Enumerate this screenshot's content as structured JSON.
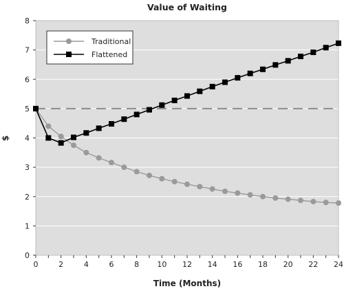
{
  "chart_data": {
    "type": "line",
    "title": "Value of Waiting",
    "xlabel": "Time (Months)",
    "ylabel": "$",
    "xlim": [
      0,
      24
    ],
    "ylim": [
      0,
      8
    ],
    "xticks": [
      0,
      2,
      4,
      6,
      8,
      10,
      12,
      14,
      16,
      18,
      20,
      22,
      24
    ],
    "yticks": [
      0,
      1,
      2,
      3,
      4,
      5,
      6,
      7,
      8
    ],
    "grid": "horizontal",
    "legend_position": "top-left",
    "reference_line": {
      "y": 5,
      "style": "dashed",
      "color": "#8c8c8c"
    },
    "series": [
      {
        "name": "Traditional",
        "color": "#9a9a9a",
        "marker": "circle",
        "x": [
          0,
          1,
          2,
          3,
          4,
          5,
          6,
          7,
          8,
          9,
          10,
          11,
          12,
          13,
          14,
          15,
          16,
          17,
          18,
          19,
          20,
          21,
          22,
          23,
          24
        ],
        "values": [
          5.0,
          4.4,
          4.05,
          3.75,
          3.5,
          3.32,
          3.16,
          3.0,
          2.85,
          2.72,
          2.61,
          2.51,
          2.42,
          2.34,
          2.26,
          2.18,
          2.12,
          2.06,
          2.0,
          1.95,
          1.91,
          1.87,
          1.83,
          1.8,
          1.78
        ]
      },
      {
        "name": "Flattened",
        "color": "#000000",
        "marker": "square",
        "x": [
          0,
          1,
          2,
          3,
          4,
          5,
          6,
          7,
          8,
          9,
          10,
          11,
          12,
          13,
          14,
          15,
          16,
          17,
          18,
          19,
          20,
          21,
          22,
          23,
          24
        ],
        "values": [
          5.0,
          4.0,
          3.83,
          4.02,
          4.17,
          4.33,
          4.48,
          4.64,
          4.8,
          4.96,
          5.12,
          5.28,
          5.43,
          5.59,
          5.75,
          5.9,
          6.05,
          6.2,
          6.34,
          6.49,
          6.63,
          6.78,
          6.92,
          7.08,
          7.23
        ]
      }
    ]
  },
  "colors": {
    "plot_background": "#dedede",
    "gridline": "#ffffff",
    "axis": "#333333"
  }
}
